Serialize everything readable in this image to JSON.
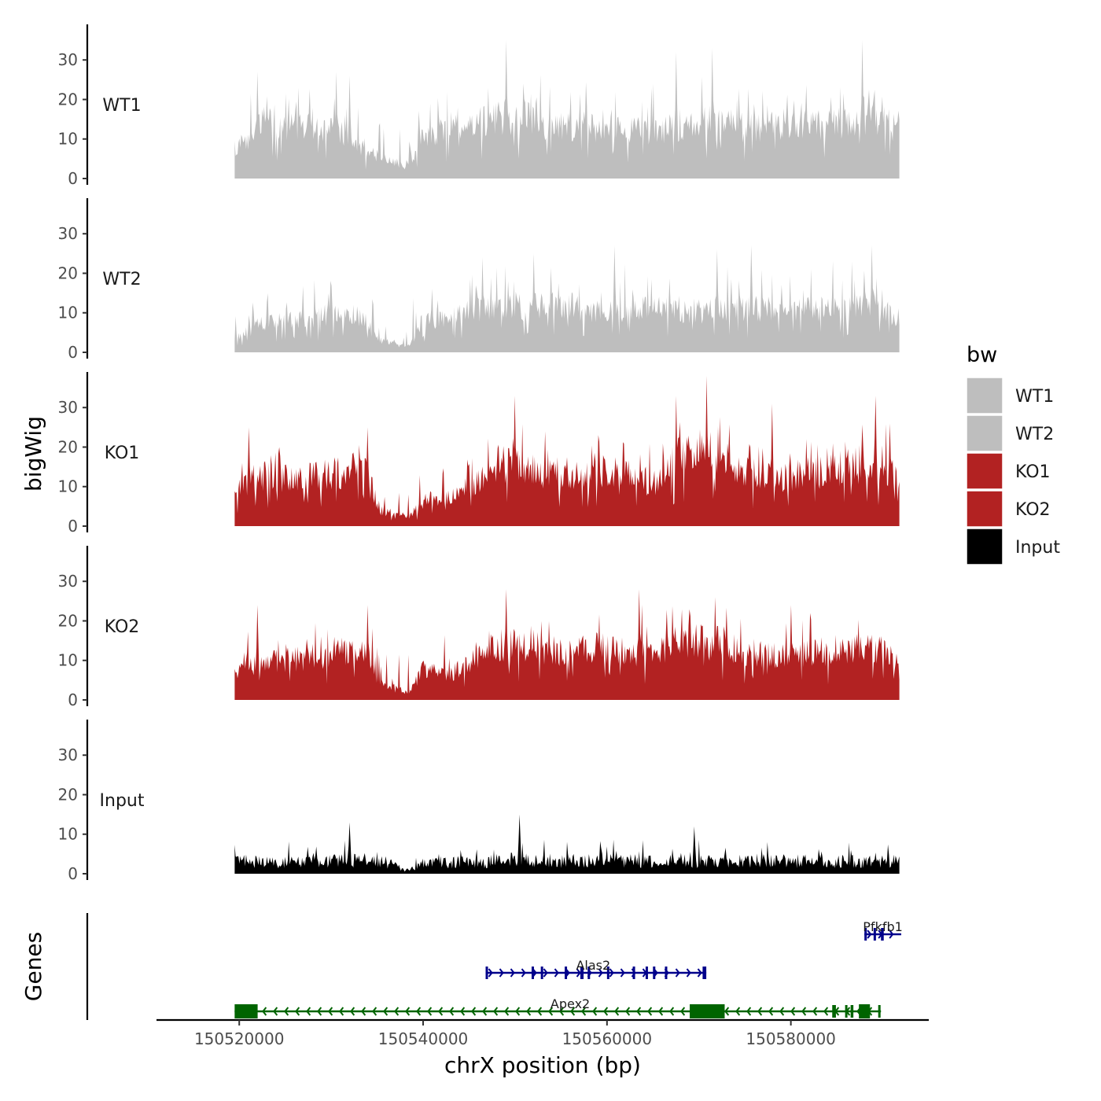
{
  "chart_data": {
    "type": "area",
    "chromosome": "chrX",
    "xlabel": "chrX position (bp)",
    "ylabel": "bigWig",
    "genes_label": "Genes",
    "xlim": [
      150511000,
      150595000
    ],
    "data_range": [
      150519500,
      150591800
    ],
    "x_ticks": [
      150520000,
      150540000,
      150560000,
      150580000
    ],
    "x_tick_labels": [
      "150520000",
      "150540000",
      "150560000",
      "150580000"
    ],
    "ylim": [
      0,
      39
    ],
    "y_ticks": [
      0,
      10,
      20,
      30
    ],
    "y_tick_labels": [
      "0",
      "10",
      "20",
      "30"
    ],
    "legend": {
      "title": "bw",
      "entries": [
        {
          "label": "WT1",
          "color": "#bebebe"
        },
        {
          "label": "WT2",
          "color": "#bebebe"
        },
        {
          "label": "KO1",
          "color": "#b22222"
        },
        {
          "label": "KO2",
          "color": "#b22222"
        },
        {
          "label": "Input",
          "color": "#000000"
        }
      ]
    },
    "tracks": [
      {
        "name": "WT1",
        "color": "#bebebe",
        "profile": [
          [
            150519500,
            10
          ],
          [
            150523000,
            18
          ],
          [
            150527000,
            16
          ],
          [
            150531000,
            15
          ],
          [
            150534000,
            8
          ],
          [
            150537000,
            5
          ],
          [
            150538500,
            5
          ],
          [
            150540000,
            14
          ],
          [
            150545000,
            18
          ],
          [
            150550000,
            20
          ],
          [
            150555000,
            16
          ],
          [
            150560000,
            17
          ],
          [
            150565000,
            15
          ],
          [
            150570000,
            18
          ],
          [
            150575000,
            16
          ],
          [
            150580000,
            17
          ],
          [
            150585000,
            17
          ],
          [
            150589000,
            20
          ],
          [
            150591800,
            15
          ]
        ],
        "peaks": [
          [
            150549000,
            35
          ],
          [
            150567500,
            32
          ],
          [
            150571500,
            33
          ],
          [
            150587800,
            35
          ],
          [
            150532000,
            26
          ],
          [
            150530500,
            27
          ],
          [
            150522000,
            27
          ]
        ]
      },
      {
        "name": "WT2",
        "color": "#bebebe",
        "profile": [
          [
            150519500,
            5
          ],
          [
            150523000,
            10
          ],
          [
            150527000,
            11
          ],
          [
            150531000,
            12
          ],
          [
            150533500,
            11
          ],
          [
            150535000,
            4
          ],
          [
            150537000,
            3
          ],
          [
            150538500,
            2
          ],
          [
            150540000,
            10
          ],
          [
            150545000,
            13
          ],
          [
            150550000,
            14
          ],
          [
            150555000,
            15
          ],
          [
            150560000,
            13
          ],
          [
            150565000,
            14
          ],
          [
            150570000,
            13
          ],
          [
            150575000,
            14
          ],
          [
            150580000,
            13
          ],
          [
            150585000,
            14
          ],
          [
            150589000,
            15
          ],
          [
            150591800,
            10
          ]
        ],
        "peaks": [
          [
            150560800,
            27
          ],
          [
            150575700,
            27
          ],
          [
            150588800,
            27
          ],
          [
            150572000,
            26
          ],
          [
            150546500,
            24
          ],
          [
            150552000,
            25
          ]
        ]
      },
      {
        "name": "KO1",
        "color": "#b22222",
        "profile": [
          [
            150519500,
            12
          ],
          [
            150523000,
            16
          ],
          [
            150527000,
            15
          ],
          [
            150531000,
            17
          ],
          [
            150534000,
            18
          ],
          [
            150535200,
            5
          ],
          [
            150537000,
            4
          ],
          [
            150538500,
            3
          ],
          [
            150540000,
            8
          ],
          [
            150543000,
            10
          ],
          [
            150546000,
            14
          ],
          [
            150548000,
            20
          ],
          [
            150552000,
            18
          ],
          [
            150555000,
            15
          ],
          [
            150558000,
            18
          ],
          [
            150562000,
            17
          ],
          [
            150565000,
            13
          ],
          [
            150567000,
            22
          ],
          [
            150571000,
            21
          ],
          [
            150575000,
            17
          ],
          [
            150580000,
            15
          ],
          [
            150585000,
            18
          ],
          [
            150589000,
            20
          ],
          [
            150591800,
            15
          ]
        ],
        "peaks": [
          [
            150570800,
            38
          ],
          [
            150550000,
            33
          ],
          [
            150567500,
            33
          ],
          [
            150578000,
            31
          ],
          [
            150589200,
            33
          ],
          [
            150534000,
            25
          ],
          [
            150521000,
            25
          ]
        ]
      },
      {
        "name": "KO2",
        "color": "#b22222",
        "profile": [
          [
            150519500,
            9
          ],
          [
            150523000,
            12
          ],
          [
            150527000,
            13
          ],
          [
            150531000,
            15
          ],
          [
            150534000,
            14
          ],
          [
            150535200,
            5
          ],
          [
            150537000,
            4
          ],
          [
            150538500,
            2
          ],
          [
            150540000,
            10
          ],
          [
            150543000,
            8
          ],
          [
            150546000,
            14
          ],
          [
            150549000,
            18
          ],
          [
            150552000,
            17
          ],
          [
            150555000,
            15
          ],
          [
            150558000,
            17
          ],
          [
            150562000,
            16
          ],
          [
            150565000,
            14
          ],
          [
            150568000,
            19
          ],
          [
            150571000,
            18
          ],
          [
            150575000,
            15
          ],
          [
            150580000,
            14
          ],
          [
            150585000,
            16
          ],
          [
            150589000,
            17
          ],
          [
            150591800,
            12
          ]
        ],
        "peaks": [
          [
            150549000,
            28
          ],
          [
            150563500,
            28
          ],
          [
            150571800,
            26
          ],
          [
            150534000,
            24
          ],
          [
            150522000,
            24
          ],
          [
            150580000,
            24
          ]
        ]
      },
      {
        "name": "Input",
        "color": "#000000",
        "profile": [
          [
            150519500,
            4
          ],
          [
            150525000,
            3.5
          ],
          [
            150530000,
            4
          ],
          [
            150535000,
            4.5
          ],
          [
            150538500,
            1
          ],
          [
            150540000,
            4
          ],
          [
            150545000,
            3.5
          ],
          [
            150550000,
            4.5
          ],
          [
            150555000,
            4
          ],
          [
            150560000,
            4
          ],
          [
            150565000,
            4
          ],
          [
            150570000,
            4
          ],
          [
            150575000,
            4
          ],
          [
            150580000,
            4
          ],
          [
            150585000,
            4
          ],
          [
            150591800,
            4
          ]
        ],
        "peaks": [
          [
            150550500,
            15
          ],
          [
            150532000,
            13
          ],
          [
            150569500,
            12
          ]
        ]
      }
    ],
    "genes": [
      {
        "name": "Pfkfb1",
        "strand": "+",
        "color": "#00008b",
        "row": 1,
        "start": 150588000,
        "end": 150592000,
        "exons": [
          [
            150588000,
            150588200
          ],
          [
            150589000,
            150589200
          ],
          [
            150589800,
            150590100
          ]
        ],
        "label_x": 150590000
      },
      {
        "name": "Alas2",
        "strand": "+",
        "color": "#00008b",
        "row": 2,
        "start": 150546800,
        "end": 150570800,
        "exons": [
          [
            150546800,
            150546950
          ],
          [
            150551800,
            150551950
          ],
          [
            150552800,
            150552950
          ],
          [
            150555400,
            150555550
          ],
          [
            150557100,
            150557450
          ],
          [
            150557900,
            150558050
          ],
          [
            150560000,
            150560150
          ],
          [
            150562800,
            150562950
          ],
          [
            150564200,
            150564350
          ],
          [
            150565000,
            150565150
          ],
          [
            150566300,
            150566450
          ],
          [
            150570400,
            150570800
          ]
        ],
        "label_x": 150558500
      },
      {
        "name": "Apex2",
        "strand": "-",
        "color": "#006400",
        "row": 3,
        "start": 150519500,
        "end": 150589800,
        "exons": [
          [
            150519500,
            150522000
          ],
          [
            150569000,
            150572800
          ],
          [
            150584500,
            150584900
          ],
          [
            150585900,
            150586100
          ],
          [
            150586500,
            150586800
          ],
          [
            150587400,
            150588600
          ],
          [
            150589500,
            150589700
          ]
        ],
        "label_x": 150556000
      }
    ]
  }
}
